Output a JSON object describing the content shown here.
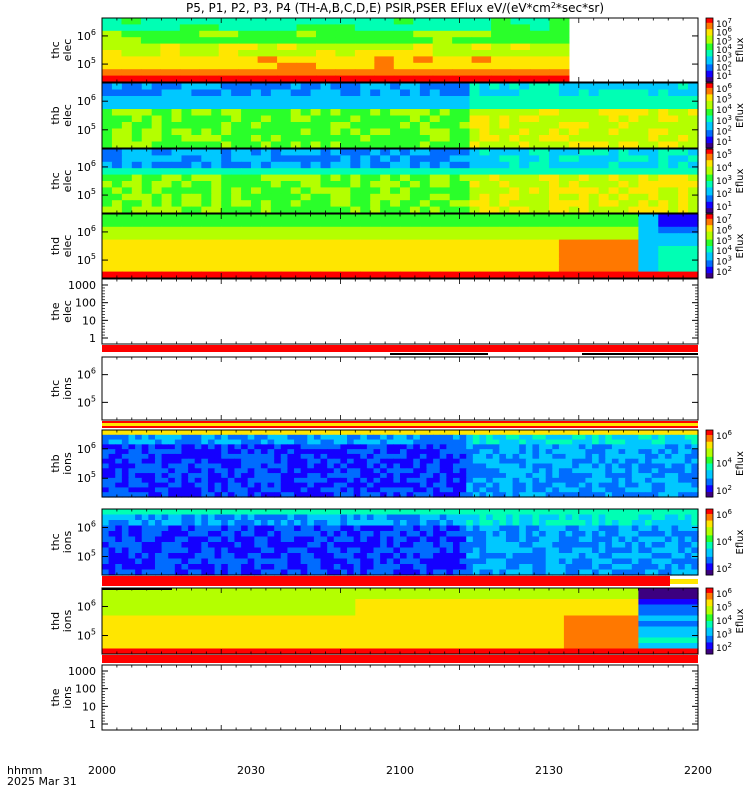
{
  "chart_data": {
    "type": "heatmap",
    "title": "P5, P1, P2, P3, P4 (TH-A,B,C,D,E) PSIR,PSER EFlux eV/(eV*cm",
    "title_sup": "2",
    "title_tail": "*sec*sr)",
    "time_label": "hhmm",
    "date_label": "2025 Mar 31",
    "x_ticks": [
      "2000",
      "2030",
      "2100",
      "2130",
      "2200"
    ],
    "x_range": [
      "2000",
      "2200"
    ],
    "colorbar_label": "Eflux",
    "panels": [
      {
        "label": [
          "thc",
          "elec"
        ],
        "ticks": [
          "10",
          "10"
        ],
        "tick_exps": [
          "6",
          "5"
        ],
        "data_until": "2134",
        "colorbar": [
          "10",
          "10",
          "10",
          "10",
          "10",
          "10",
          "10"
        ],
        "colorbar_exps": [
          "7",
          "6",
          "5",
          "4",
          "3",
          "2",
          "1"
        ]
      },
      {
        "label": [
          "thb",
          "elec"
        ],
        "ticks": [
          "10",
          "10"
        ],
        "tick_exps": [
          "6",
          "5"
        ],
        "data_until": "2200",
        "colorbar": [
          "10",
          "10",
          "10",
          "10",
          "10",
          "10"
        ],
        "colorbar_exps": [
          "6",
          "5",
          "4",
          "3",
          "2",
          "1"
        ]
      },
      {
        "label": [
          "thc",
          "elec"
        ],
        "ticks": [
          "10",
          "10"
        ],
        "tick_exps": [
          "6",
          "5"
        ],
        "data_until": "2200",
        "colorbar": [
          "10",
          "10",
          "10",
          "10",
          "10"
        ],
        "colorbar_exps": [
          "5",
          "4",
          "3",
          "2",
          "1"
        ]
      },
      {
        "label": [
          "thd",
          "elec"
        ],
        "ticks": [
          "10",
          "10"
        ],
        "tick_exps": [
          "6",
          "5"
        ],
        "data_until": "2200",
        "colorbar": [
          "10",
          "10",
          "10",
          "10",
          "10",
          "10"
        ],
        "colorbar_exps": [
          "7",
          "6",
          "5",
          "4",
          "3",
          "2"
        ]
      },
      {
        "label": [
          "the",
          "elec"
        ],
        "ticks": [
          "1000",
          "100",
          "10",
          "1"
        ],
        "tick_exps": [
          "",
          "",
          "",
          ""
        ],
        "data_until": "",
        "colorbar": [],
        "colorbar_exps": []
      },
      {
        "label": [
          "thc",
          "ions"
        ],
        "ticks": [
          "10",
          "10"
        ],
        "tick_exps": [
          "6",
          "5"
        ],
        "data_until": "",
        "colorbar": [],
        "colorbar_exps": []
      },
      {
        "label": [
          "thb",
          "ions"
        ],
        "ticks": [
          "10",
          "10"
        ],
        "tick_exps": [
          "6",
          "5"
        ],
        "data_until": "2200",
        "colorbar": [
          "10",
          "10",
          "10"
        ],
        "colorbar_exps": [
          "6",
          "4",
          "2"
        ]
      },
      {
        "label": [
          "thc",
          "ions"
        ],
        "ticks": [
          "10",
          "10"
        ],
        "tick_exps": [
          "6",
          "5"
        ],
        "data_until": "2200",
        "colorbar": [
          "10",
          "10",
          "10"
        ],
        "colorbar_exps": [
          "6",
          "4",
          "2"
        ]
      },
      {
        "label": [
          "thd",
          "ions"
        ],
        "ticks": [
          "10",
          "10"
        ],
        "tick_exps": [
          "6",
          "5"
        ],
        "data_until": "2200",
        "colorbar": [
          "10",
          "10",
          "10",
          "10",
          "10"
        ],
        "colorbar_exps": [
          "6",
          "5",
          "4",
          "3",
          "2"
        ]
      },
      {
        "label": [
          "the",
          "ions"
        ],
        "ticks": [
          "1000",
          "100",
          "10",
          "1"
        ],
        "tick_exps": [
          "",
          "",
          "",
          ""
        ],
        "data_until": "",
        "colorbar": [],
        "colorbar_exps": []
      }
    ],
    "colors": {
      "palette": [
        "#3c0080",
        "#1400ff",
        "#006cff",
        "#00c8ff",
        "#00ffb4",
        "#2aff2a",
        "#b4ff00",
        "#ffe600",
        "#ff7800",
        "#ff0000"
      ],
      "quality_bar": "#ff0000"
    }
  }
}
